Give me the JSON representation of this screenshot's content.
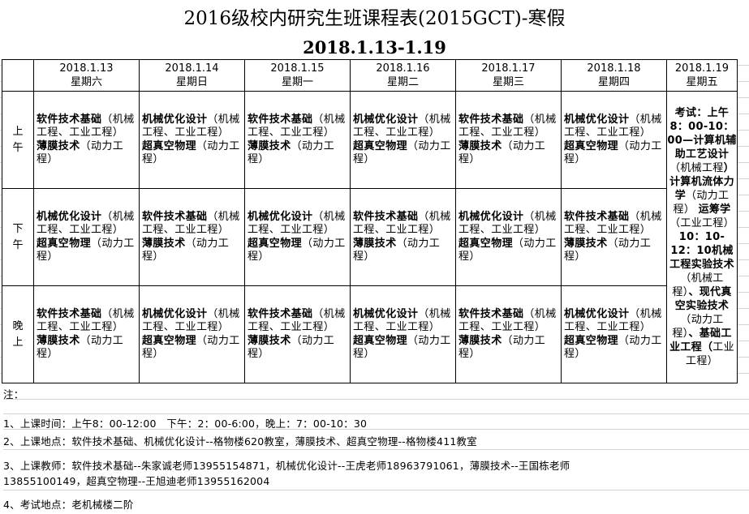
{
  "title": "2016级校内研究生班课程表(2015GCT)-寒假",
  "subtitle": "2018.1.13-1.19",
  "days": [
    {
      "date": "2018.1.13",
      "weekday": "星期六"
    },
    {
      "date": "2018.1.14",
      "weekday": "星期日"
    },
    {
      "date": "2018.1.15",
      "weekday": "星期一"
    },
    {
      "date": "2018.1.16",
      "weekday": "星期二"
    },
    {
      "date": "2018.1.17",
      "weekday": "星期三"
    },
    {
      "date": "2018.1.18",
      "weekday": "星期四"
    },
    {
      "date": "2018.1.19",
      "weekday": "星期五"
    }
  ],
  "slots": [
    {
      "label": "上午",
      "cells": [
        [
          {
            "b": "软件技术基础",
            "n": "（机械工程、工业工程）"
          },
          {
            "b": "薄膜技术",
            "n": "（动力工程）"
          }
        ],
        [
          {
            "b": "机械优化设计",
            "n": "（机械工程、工业工程）"
          },
          {
            "b": "超真空物理",
            "n": "（动力工程）"
          }
        ],
        [
          {
            "b": "软件技术基础",
            "n": "（机械工程、工业工程）"
          },
          {
            "b": "薄膜技术",
            "n": "（动力工程）"
          }
        ],
        [
          {
            "b": "机械优化设计",
            "n": "（机械工程、工业工程）"
          },
          {
            "b": "超真空物理",
            "n": "（动力工程）"
          }
        ],
        [
          {
            "b": "软件技术基础",
            "n": "（机械工程、工业工程）"
          },
          {
            "b": "薄膜技术",
            "n": "（动力工程）"
          }
        ],
        [
          {
            "b": "机械优化设计",
            "n": "（机械工程、工业工程）"
          },
          {
            "b": "超真空物理",
            "n": "（动力工程）"
          }
        ]
      ]
    },
    {
      "label": "下午",
      "cells": [
        [
          {
            "b": "机械优化设计",
            "n": "（机械工程、工业工程）"
          },
          {
            "b": "超真空物理",
            "n": "（动力工程）"
          }
        ],
        [
          {
            "b": "软件技术基础",
            "n": "（机械工程、工业工程）"
          },
          {
            "b": "薄膜技术",
            "n": "（动力工程）"
          }
        ],
        [
          {
            "b": "机械优化设计",
            "n": "（机械工程、工业工程）"
          },
          {
            "b": "超真空物理",
            "n": "（动力工程）"
          }
        ],
        [
          {
            "b": "软件技术基础",
            "n": "（机械工程、工业工程）"
          },
          {
            "b": "薄膜技术",
            "n": "（动力工程）"
          }
        ],
        [
          {
            "b": "机械优化设计",
            "n": "（机械工程、工业工程）"
          },
          {
            "b": "超真空物理",
            "n": "（动力工程）"
          }
        ],
        [
          {
            "b": "软件技术基础",
            "n": "（机械工程、工业工程）"
          },
          {
            "b": "薄膜技术",
            "n": "（动力工程）"
          }
        ]
      ]
    },
    {
      "label": "晚上",
      "cells": [
        [
          {
            "b": "软件技术基础",
            "n": "（机械工程、工业工程）"
          },
          {
            "b": "薄膜技术",
            "n": "（动力工程）"
          }
        ],
        [
          {
            "b": "机械优化设计",
            "n": "（机械工程、工业工程）"
          },
          {
            "b": "超真空物理",
            "n": "（动力工程）"
          }
        ],
        [
          {
            "b": "软件技术基础",
            "n": "（机械工程、工业工程）"
          },
          {
            "b": "薄膜技术",
            "n": "（动力工程）"
          }
        ],
        [
          {
            "b": "机械优化设计",
            "n": "（机械工程、工业工程）"
          },
          {
            "b": "超真空物理",
            "n": "（动力工程）"
          }
        ],
        [
          {
            "b": "软件技术基础",
            "n": "（机械工程、工业工程）"
          },
          {
            "b": "薄膜技术",
            "n": "（动力工程）"
          }
        ],
        [
          {
            "b": "机械优化设计",
            "n": "（机械工程、工业工程）"
          },
          {
            "b": "超真空物理",
            "n": "（动力工程）"
          }
        ]
      ]
    }
  ],
  "exam": [
    {
      "t": "考试：上午8：00-10：00—计算机辅助工艺设计",
      "bold": true
    },
    {
      "t": "（机械工程",
      "bold": false
    },
    {
      "t": "）计算机流体力学",
      "bold": true
    },
    {
      "t": "（动力工程） ",
      "bold": false
    },
    {
      "t": "运筹学",
      "bold": true
    },
    {
      "t": "（工业工程）",
      "bold": false
    },
    {
      "t": "10：10-12：10机械工程实验技术",
      "bold": true
    },
    {
      "t": "（机械工程）",
      "bold": false
    },
    {
      "t": "、现代真空实验技术",
      "bold": true
    },
    {
      "t": "（动力工程）",
      "bold": false
    },
    {
      "t": "、基础工业工程（",
      "bold": true
    },
    {
      "t": "工业工程）",
      "bold": false
    }
  ],
  "notes": {
    "heading": "注：",
    "line1": "1、上课时间：上午8：00-12:00　下午：2：00-6:00，晚上：7：00-10：30",
    "line2": "2、上课地点：软件技术基础、机械优化设计--格物楼620教室，薄膜技术、超真空物理--格物楼411教室",
    "line3a": "3、上课教师：软件技术基础--朱家诚老师13955154871，机械优化设计--王虎老师18963791061，薄膜技术--王国栋老师",
    "line3b": "13855100149，超真空物理--王旭迪老师13955162004",
    "line4": "4、考试地点：老机械楼二阶"
  }
}
